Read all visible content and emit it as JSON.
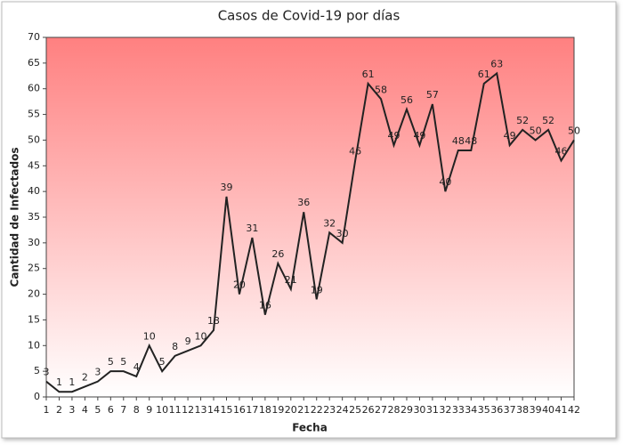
{
  "chart_data": {
    "type": "line",
    "title": "Casos de Covid-19 por días",
    "x_label": "Fecha",
    "y_label": "Cantidad de Infectados",
    "x": [
      1,
      2,
      3,
      4,
      5,
      6,
      7,
      8,
      9,
      10,
      11,
      12,
      13,
      14,
      15,
      16,
      17,
      18,
      19,
      20,
      21,
      22,
      23,
      24,
      25,
      26,
      27,
      28,
      29,
      30,
      31,
      32,
      33,
      34,
      35,
      36,
      37,
      38,
      39,
      40,
      41,
      42
    ],
    "values": [
      3,
      1,
      1,
      2,
      3,
      5,
      5,
      4,
      10,
      5,
      8,
      9,
      10,
      13,
      39,
      20,
      31,
      16,
      26,
      21,
      36,
      19,
      32,
      30,
      46,
      61,
      58,
      49,
      56,
      49,
      57,
      40,
      48,
      48,
      61,
      63,
      49,
      52,
      50,
      52,
      46,
      50
    ],
    "color": "#222222",
    "xlim": [
      1,
      42
    ],
    "ylim": [
      0,
      70
    ],
    "yticks": [
      0,
      5,
      10,
      15,
      20,
      25,
      30,
      35,
      40,
      45,
      50,
      55,
      60,
      65,
      70
    ]
  }
}
